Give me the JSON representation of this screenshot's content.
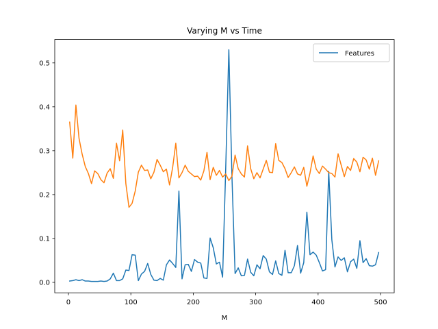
{
  "chart_data": {
    "type": "line",
    "title": "Varying M vs Time",
    "xlabel": "M",
    "ylabel": "",
    "xlim": [
      -21.9,
      521.9
    ],
    "ylim": [
      -0.0238,
      0.5534
    ],
    "xticks": [
      0,
      100,
      200,
      300,
      400,
      500
    ],
    "yticks": [
      0.0,
      0.1,
      0.2,
      0.3,
      0.4,
      0.5
    ],
    "xtick_labels": [
      "0",
      "100",
      "200",
      "300",
      "400",
      "500"
    ],
    "ytick_labels": [
      "0.0",
      "0.1",
      "0.2",
      "0.3",
      "0.4",
      "0.5"
    ],
    "legend_position": "top-right",
    "grid": false,
    "x": [
      2,
      7,
      12,
      17,
      22,
      27,
      32,
      37,
      42,
      47,
      52,
      57,
      62,
      67,
      72,
      77,
      82,
      87,
      92,
      97,
      102,
      107,
      112,
      117,
      122,
      127,
      132,
      137,
      142,
      147,
      152,
      157,
      162,
      167,
      172,
      177,
      182,
      187,
      192,
      197,
      202,
      207,
      212,
      217,
      222,
      227,
      232,
      237,
      242,
      247,
      252,
      257,
      262,
      267,
      272,
      277,
      282,
      287,
      292,
      297,
      302,
      307,
      312,
      317,
      322,
      327,
      332,
      337,
      342,
      347,
      352,
      357,
      362,
      367,
      372,
      377,
      382,
      387,
      392,
      397,
      402,
      407,
      412,
      417,
      422,
      427,
      432,
      437,
      442,
      447,
      452,
      457,
      462,
      467,
      472,
      477,
      482,
      487,
      492,
      497
    ],
    "series": [
      {
        "name": "Features",
        "color": "#1f77b4",
        "values": [
          0.003,
          0.004,
          0.006,
          0.004,
          0.006,
          0.003,
          0.003,
          0.002,
          0.002,
          0.002,
          0.003,
          0.002,
          0.003,
          0.008,
          0.021,
          0.004,
          0.004,
          0.008,
          0.028,
          0.027,
          0.063,
          0.062,
          0.004,
          0.019,
          0.025,
          0.043,
          0.018,
          0.005,
          0.004,
          0.009,
          0.005,
          0.04,
          0.051,
          0.043,
          0.034,
          0.208,
          0.008,
          0.04,
          0.041,
          0.025,
          0.052,
          0.046,
          0.044,
          0.01,
          0.009,
          0.101,
          0.079,
          0.042,
          0.046,
          0.012,
          0.26,
          0.53,
          0.24,
          0.02,
          0.033,
          0.015,
          0.016,
          0.053,
          0.023,
          0.015,
          0.04,
          0.031,
          0.061,
          0.053,
          0.024,
          0.018,
          0.049,
          0.02,
          0.016,
          0.073,
          0.022,
          0.022,
          0.038,
          0.084,
          0.021,
          0.045,
          0.16,
          0.063,
          0.069,
          0.062,
          0.045,
          0.026,
          0.029,
          0.253,
          0.097,
          0.035,
          0.058,
          0.05,
          0.056,
          0.024,
          0.047,
          0.053,
          0.032,
          0.095,
          0.045,
          0.054,
          0.038,
          0.037,
          0.04,
          0.068
        ]
      },
      {
        "name": "",
        "color": "#ff7f0e",
        "values": [
          0.365,
          0.283,
          0.404,
          0.328,
          0.292,
          0.264,
          0.248,
          0.225,
          0.254,
          0.248,
          0.234,
          0.227,
          0.249,
          0.259,
          0.237,
          0.317,
          0.277,
          0.347,
          0.225,
          0.171,
          0.18,
          0.208,
          0.251,
          0.267,
          0.255,
          0.256,
          0.236,
          0.251,
          0.28,
          0.267,
          0.252,
          0.258,
          0.222,
          0.262,
          0.317,
          0.238,
          0.25,
          0.267,
          0.253,
          0.247,
          0.241,
          0.242,
          0.233,
          0.254,
          0.296,
          0.234,
          0.262,
          0.244,
          0.255,
          0.24,
          0.247,
          0.232,
          0.242,
          0.29,
          0.259,
          0.247,
          0.24,
          0.311,
          0.259,
          0.236,
          0.25,
          0.238,
          0.258,
          0.278,
          0.251,
          0.25,
          0.316,
          0.278,
          0.273,
          0.259,
          0.239,
          0.25,
          0.263,
          0.247,
          0.244,
          0.262,
          0.219,
          0.249,
          0.288,
          0.258,
          0.248,
          0.265,
          0.258,
          0.25,
          0.248,
          0.24,
          0.293,
          0.267,
          0.241,
          0.264,
          0.255,
          0.282,
          0.274,
          0.252,
          0.285,
          0.279,
          0.258,
          0.283,
          0.244,
          0.277
        ]
      }
    ]
  }
}
